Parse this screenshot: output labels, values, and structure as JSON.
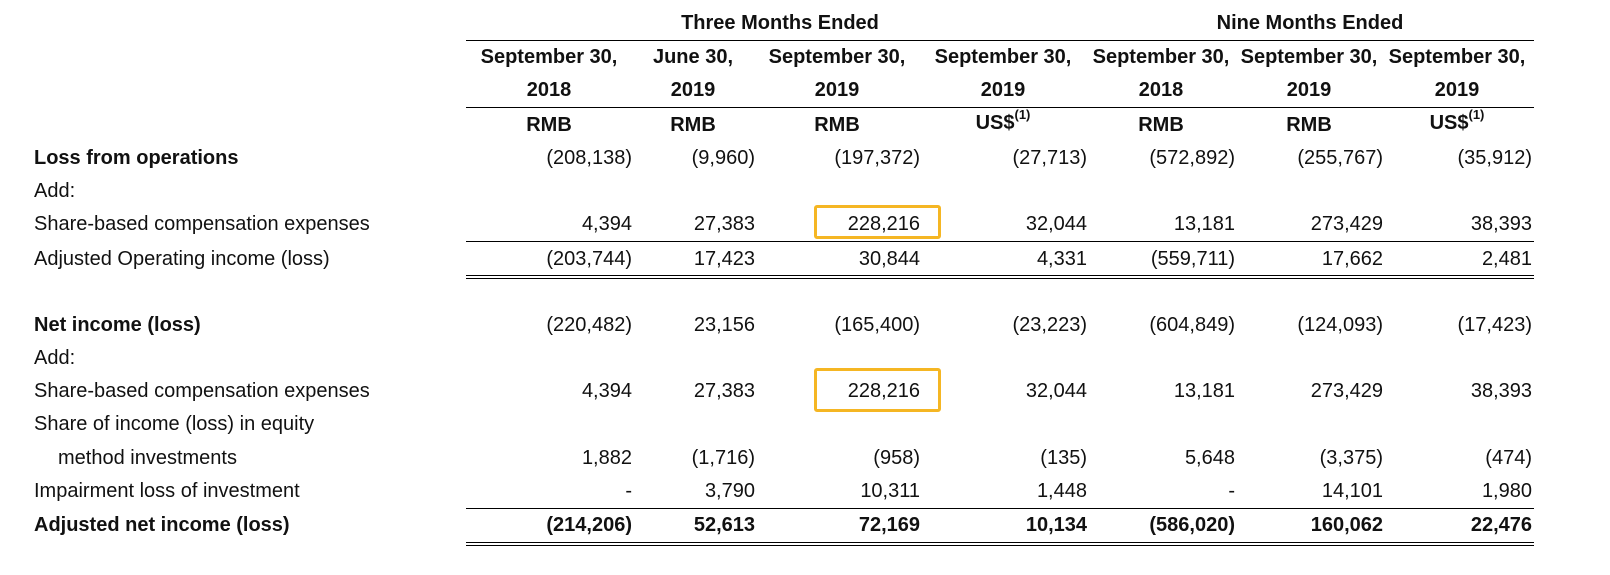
{
  "group_headers": [
    "Three Months Ended",
    "Nine Months Ended"
  ],
  "columns": [
    {
      "date": "September 30,",
      "year": "2018",
      "currency": "RMB",
      "note": ""
    },
    {
      "date": "June 30,",
      "year": "2019",
      "currency": "RMB",
      "note": ""
    },
    {
      "date": "September 30,",
      "year": "2019",
      "currency": "RMB",
      "note": ""
    },
    {
      "date": "September 30,",
      "year": "2019",
      "currency": "US$",
      "note": "(1)"
    },
    {
      "date": "September 30,",
      "year": "2018",
      "currency": "RMB",
      "note": ""
    },
    {
      "date": "September 30,",
      "year": "2019",
      "currency": "RMB",
      "note": ""
    },
    {
      "date": "September 30,",
      "year": "2019",
      "currency": "US$",
      "note": "(1)"
    }
  ],
  "rows": [
    {
      "label": "Loss from operations",
      "bold": true,
      "values": [
        "(208,138)",
        "(9,960)",
        "(197,372)",
        "(27,713)",
        "(572,892)",
        "(255,767)",
        "(35,912)"
      ]
    },
    {
      "label": "Add:",
      "bold": false,
      "values": []
    },
    {
      "label": "Share-based compensation expenses",
      "bold": false,
      "values": [
        "4,394",
        "27,383",
        "228,216",
        "32,044",
        "13,181",
        "273,429",
        "38,393"
      ]
    },
    {
      "label": "Adjusted Operating income (loss)",
      "bold": false,
      "values": [
        "(203,744)",
        "17,423",
        "30,844",
        "4,331",
        "(559,711)",
        "17,662",
        "2,481"
      ]
    },
    {
      "label": "Net income (loss)",
      "bold": true,
      "values": [
        "(220,482)",
        "23,156",
        "(165,400)",
        "(23,223)",
        "(604,849)",
        "(124,093)",
        "(17,423)"
      ]
    },
    {
      "label": "Add:",
      "bold": false,
      "values": []
    },
    {
      "label": "Share-based compensation expenses",
      "bold": false,
      "values": [
        "4,394",
        "27,383",
        "228,216",
        "32,044",
        "13,181",
        "273,429",
        "38,393"
      ]
    },
    {
      "label": "Share of income (loss) in equity",
      "bold": false,
      "values": []
    },
    {
      "label": "method investments",
      "bold": false,
      "values": [
        "1,882",
        "(1,716)",
        "(958)",
        "(135)",
        "5,648",
        "(3,375)",
        "(474)"
      ]
    },
    {
      "label": "Impairment loss of investment",
      "bold": false,
      "values": [
        "-",
        "3,790",
        "10,311",
        "1,448",
        "-",
        "14,101",
        "1,980"
      ]
    },
    {
      "label": "Adjusted net income (loss)",
      "bold": true,
      "values": [
        "(214,206)",
        "52,613",
        "72,169",
        "10,134",
        "(586,020)",
        "160,062",
        "22,476"
      ]
    }
  ]
}
